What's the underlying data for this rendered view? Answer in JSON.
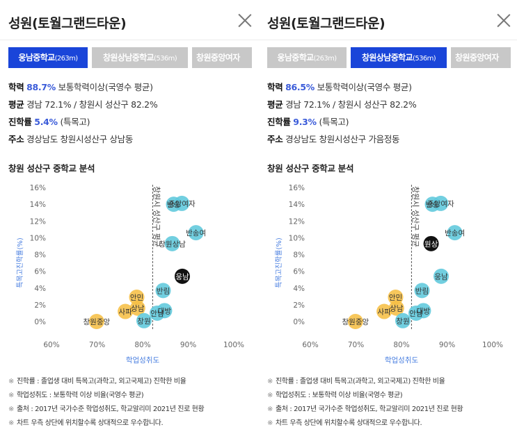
{
  "panels": [
    {
      "title": "성원(토월그랜드타운)",
      "tabs": [
        {
          "label": "웅남중학교",
          "dist": "(263m)",
          "active": true
        },
        {
          "label": "창원상남중학교",
          "dist": "(536m)",
          "active": false
        },
        {
          "label": "창원중앙여자",
          "dist": "",
          "active": false
        }
      ],
      "info": {
        "hakryeok_label": "학력",
        "hakryeok_value": "88.7%",
        "hakryeok_desc": "보통학력이상(국영수 평균)",
        "avg_label": "평균",
        "avg_value": "경남 72.1% / 창원시 성산구 82.2%",
        "jinhak_label": "진학률",
        "jinhak_value": "5.4%",
        "jinhak_desc": "(특목고)",
        "addr_label": "주소",
        "addr_value": "경상남도 창원시성산구 상남동"
      },
      "section_title": "창원 성산구 중학교 분석",
      "chart_data": {
        "type": "scatter",
        "xlabel": "학업성취도",
        "ylabel": "특목고진학률(%)",
        "xlim": [
          60,
          100
        ],
        "ylim": [
          0,
          16
        ],
        "xticks": [
          "60%",
          "70%",
          "80%",
          "90%",
          "100%"
        ],
        "yticks": [
          "0%",
          "2%",
          "4%",
          "6%",
          "8%",
          "10%",
          "12%",
          "14%",
          "16%"
        ],
        "avg_line": {
          "x": 82.2,
          "label": "창원시 성산구 평균"
        },
        "points": [
          {
            "label": "반송",
            "x": 86.8,
            "y": 14.0,
            "group": "teal"
          },
          {
            "label": "중앙여자",
            "x": 88.6,
            "y": 14.1,
            "group": "teal"
          },
          {
            "label": "반송여",
            "x": 91.7,
            "y": 10.6,
            "group": "teal"
          },
          {
            "label": "창원상남",
            "x": 86.5,
            "y": 9.3,
            "group": "teal"
          },
          {
            "label": "웅남",
            "x": 88.7,
            "y": 5.4,
            "group": "black"
          },
          {
            "label": "반림",
            "x": 84.5,
            "y": 3.7,
            "group": "teal"
          },
          {
            "label": "안민",
            "x": 78.7,
            "y": 2.9,
            "group": "orange"
          },
          {
            "label": "사파",
            "x": 76.2,
            "y": 1.2,
            "group": "orange"
          },
          {
            "label": "상남",
            "x": 78.9,
            "y": 1.6,
            "group": "orange"
          },
          {
            "label": "대방",
            "x": 84.8,
            "y": 1.3,
            "group": "teal"
          },
          {
            "label": "안남",
            "x": 83.2,
            "y": 1.0,
            "group": "teal"
          },
          {
            "label": "창원",
            "x": 80.3,
            "y": 0.1,
            "group": "teal"
          },
          {
            "label": "창원중앙",
            "x": 69.9,
            "y": 0.0,
            "group": "orange"
          }
        ]
      }
    },
    {
      "title": "성원(토월그랜드타운)",
      "tabs": [
        {
          "label": "웅남중학교",
          "dist": "(263m)",
          "active": false
        },
        {
          "label": "창원상남중학교",
          "dist": "(536m)",
          "active": true
        },
        {
          "label": "창원중앙여자",
          "dist": "",
          "active": false
        }
      ],
      "info": {
        "hakryeok_label": "학력",
        "hakryeok_value": "86.5%",
        "hakryeok_desc": "보통학력이상(국영수 평균)",
        "avg_label": "평균",
        "avg_value": "경남 72.1% / 창원시 성산구 82.2%",
        "jinhak_label": "진학률",
        "jinhak_value": "9.3%",
        "jinhak_desc": "(특목고)",
        "addr_label": "주소",
        "addr_value": "경상남도 창원시성산구 가음정동"
      },
      "section_title": "창원 성산구 중학교 분석",
      "chart_data": {
        "type": "scatter",
        "xlabel": "학업성취도",
        "ylabel": "특목고진학률(%)",
        "xlim": [
          60,
          100
        ],
        "ylim": [
          0,
          16
        ],
        "xticks": [
          "60%",
          "70%",
          "80%",
          "90%",
          "100%"
        ],
        "yticks": [
          "0%",
          "2%",
          "4%",
          "6%",
          "8%",
          "10%",
          "12%",
          "14%",
          "16%"
        ],
        "avg_line": {
          "x": 82.2,
          "label": "창원시 성산구 평균"
        },
        "points": [
          {
            "label": "반송",
            "x": 86.8,
            "y": 14.0,
            "group": "teal"
          },
          {
            "label": "중앙여자",
            "x": 88.6,
            "y": 14.1,
            "group": "teal"
          },
          {
            "label": "반송여",
            "x": 91.7,
            "y": 10.6,
            "group": "teal"
          },
          {
            "label": "웅남",
            "x": 88.7,
            "y": 5.4,
            "group": "teal"
          },
          {
            "label": "창원상남",
            "x": 86.5,
            "y": 9.3,
            "group": "black"
          },
          {
            "label": "반림",
            "x": 84.5,
            "y": 3.7,
            "group": "teal"
          },
          {
            "label": "안민",
            "x": 78.7,
            "y": 2.9,
            "group": "orange"
          },
          {
            "label": "사파",
            "x": 76.2,
            "y": 1.2,
            "group": "orange"
          },
          {
            "label": "상남",
            "x": 78.9,
            "y": 1.6,
            "group": "orange"
          },
          {
            "label": "대방",
            "x": 84.8,
            "y": 1.3,
            "group": "teal"
          },
          {
            "label": "안남",
            "x": 83.2,
            "y": 1.0,
            "group": "teal"
          },
          {
            "label": "창원",
            "x": 80.3,
            "y": 0.1,
            "group": "teal"
          },
          {
            "label": "창원중앙",
            "x": 69.9,
            "y": 0.0,
            "group": "orange"
          }
        ]
      }
    }
  ],
  "black_point_short": [
    "웅남",
    "원상"
  ],
  "colors": {
    "accent": "#1a45d9",
    "highlight_text": "#3a5bd9",
    "teal": "#5fc8dc",
    "orange": "#f6bf45",
    "black": "#111111",
    "avg_line": "#555555",
    "axis_label": "#4a7fe0"
  },
  "notes": [
    "진학률 : 졸업생 대비 특목고(과학고, 외고국제고) 진학한 비율",
    "학업성취도 : 보통학력 이상 비율(국영수 평균)",
    "출처 : 2017년 국가수준 학업성취도, 학교알리미 2021년 진로 현황",
    "차트 우측 상단에 위치할수록 상대적으로 우수합니다."
  ],
  "note_mark": "※"
}
